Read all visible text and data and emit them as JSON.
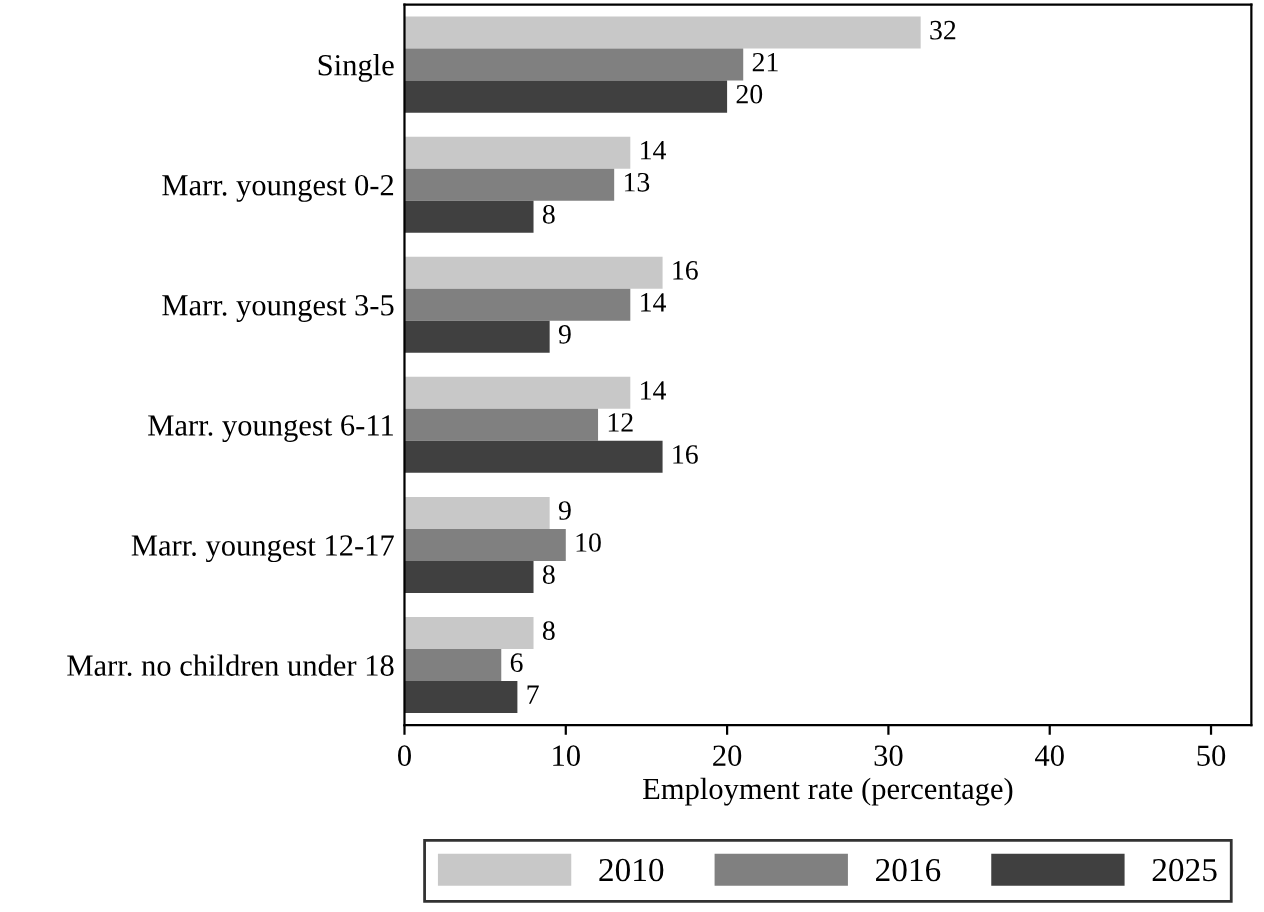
{
  "chart_data": {
    "type": "bar",
    "orientation": "horizontal",
    "xlabel": "Employment rate (percentage)",
    "categories": [
      "Single",
      "Marr. youngest 0-2",
      "Marr. youngest 3-5",
      "Marr. youngest 6-11",
      "Marr. youngest 12-17",
      "Marr. no children under 18"
    ],
    "series": [
      {
        "name": "2010",
        "color": "#c8c8c8",
        "values": [
          32,
          14,
          16,
          14,
          9,
          8
        ]
      },
      {
        "name": "2016",
        "color": "#808080",
        "values": [
          21,
          13,
          14,
          12,
          10,
          6
        ]
      },
      {
        "name": "2025",
        "color": "#404040",
        "values": [
          20,
          8,
          9,
          16,
          8,
          7
        ]
      }
    ],
    "xlim": [
      0,
      52.5
    ],
    "xticks": [
      0,
      10,
      20,
      30,
      40,
      50
    ],
    "data_labels": true,
    "grid": false,
    "legend": "bottom"
  }
}
